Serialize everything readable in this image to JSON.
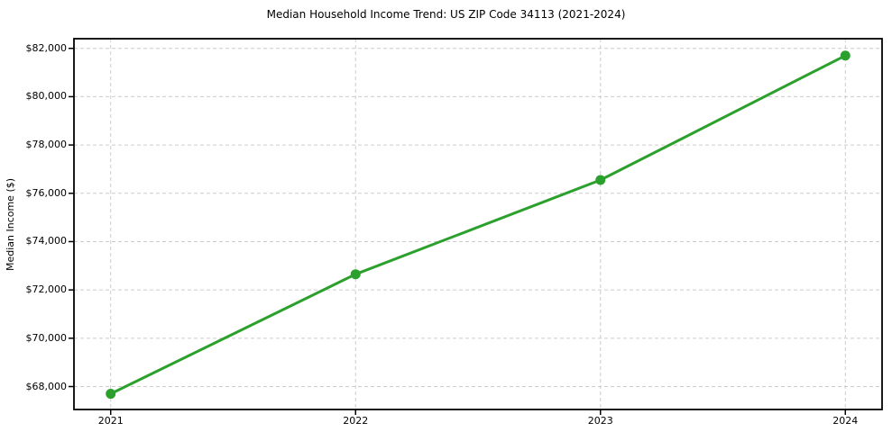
{
  "chart": {
    "title": "Median Household Income Trend: US ZIP Code 34113 (2021-2024)",
    "ylabel": "Median Income ($)"
  },
  "chart_data": {
    "type": "line",
    "title": "Median Household Income Trend: US ZIP Code 34113 (2021-2024)",
    "xlabel": "",
    "ylabel": "Median Income ($)",
    "x": [
      2021,
      2022,
      2023,
      2024
    ],
    "values": [
      67700,
      72650,
      76550,
      81700
    ],
    "xticks": [
      2021,
      2022,
      2023,
      2024
    ],
    "xtick_labels": [
      "2021",
      "2022",
      "2023",
      "2024"
    ],
    "yticks": [
      68000,
      70000,
      72000,
      74000,
      76000,
      78000,
      80000,
      82000
    ],
    "ytick_labels": [
      "$68,000",
      "$70,000",
      "$72,000",
      "$74,000",
      "$76,000",
      "$78,000",
      "$80,000",
      "$82,000"
    ],
    "xlim": [
      2020.85,
      2024.15
    ],
    "ylim": [
      67050,
      82400
    ],
    "grid": true,
    "grid_style": "dashed",
    "legend": false,
    "line_color": "#2ca02c",
    "marker": "circle",
    "grid_color": "#cccccc",
    "spine_color": "#000000",
    "text_color": "#000000",
    "background": "#ffffff"
  }
}
